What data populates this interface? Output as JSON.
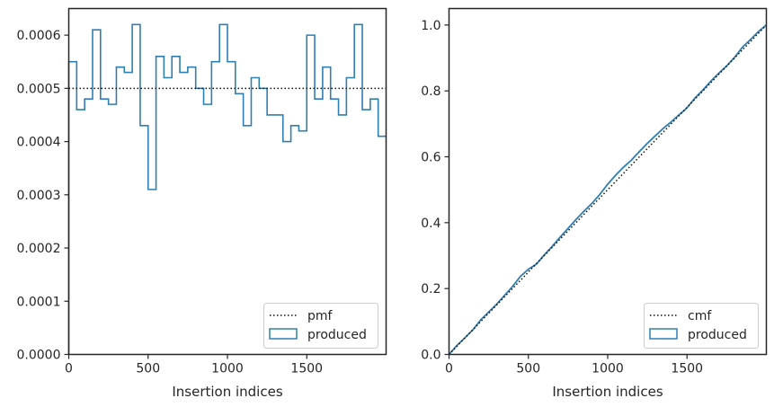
{
  "colors": {
    "produced": "#2f7fb3",
    "reference": "#111111",
    "axes": "#262626"
  },
  "chart_data": [
    {
      "type": "histogram-step",
      "xlabel": "Insertion indices",
      "ylabel": "",
      "xlim": [
        0,
        2000
      ],
      "ylim": [
        0,
        0.00065
      ],
      "xticks": [
        0,
        500,
        1000,
        1500
      ],
      "xtick_labels": [
        "0",
        "500",
        "1000",
        "1500"
      ],
      "yticks": [
        0,
        0.0001,
        0.0002,
        0.0003,
        0.0004,
        0.0005,
        0.0006
      ],
      "ytick_labels": [
        "0.0000",
        "0.0001",
        "0.0002",
        "0.0003",
        "0.0004",
        "0.0005",
        "0.0006"
      ],
      "legend": {
        "placement": "lower-right",
        "entries": [
          "pmf",
          "produced"
        ]
      },
      "reference": {
        "name": "pmf",
        "style": "dotted",
        "value": 0.0005
      },
      "produced": {
        "name": "produced",
        "bin_width": 50,
        "bin_edges_start": 0,
        "values": [
          0.00055,
          0.00046,
          0.00048,
          0.00061,
          0.00048,
          0.00047,
          0.00054,
          0.00053,
          0.00062,
          0.00043,
          0.00031,
          0.00056,
          0.00052,
          0.00056,
          0.00053,
          0.00054,
          0.0005,
          0.00047,
          0.00055,
          0.00062,
          0.00055,
          0.00049,
          0.00043,
          0.00052,
          0.0005,
          0.00045,
          0.00045,
          0.0004,
          0.00043,
          0.00042,
          0.0006,
          0.00048,
          0.00054,
          0.00048,
          0.00045,
          0.00052,
          0.00062,
          0.00046,
          0.00048,
          0.00041
        ]
      }
    },
    {
      "type": "line",
      "xlabel": "Insertion indices",
      "ylabel": "",
      "xlim": [
        0,
        2000
      ],
      "ylim": [
        0,
        1.05
      ],
      "xticks": [
        0,
        500,
        1000,
        1500
      ],
      "xtick_labels": [
        "0",
        "500",
        "1000",
        "1500"
      ],
      "yticks": [
        0,
        0.2,
        0.4,
        0.6,
        0.8,
        1.0
      ],
      "ytick_labels": [
        "0.0",
        "0.2",
        "0.4",
        "0.6",
        "0.8",
        "1.0"
      ],
      "legend": {
        "placement": "lower-right",
        "entries": [
          "cmf",
          "produced"
        ]
      },
      "reference": {
        "name": "cmf",
        "style": "dotted",
        "x": [
          0,
          2000
        ],
        "y": [
          0,
          1.0
        ]
      },
      "produced": {
        "name": "produced",
        "x": [
          0,
          50,
          100,
          150,
          200,
          250,
          300,
          350,
          400,
          450,
          500,
          550,
          600,
          650,
          700,
          750,
          800,
          850,
          900,
          950,
          1000,
          1050,
          1100,
          1150,
          1200,
          1250,
          1300,
          1350,
          1400,
          1450,
          1500,
          1550,
          1600,
          1650,
          1700,
          1750,
          1800,
          1850,
          1900,
          1950,
          2000
        ],
        "y": [
          0,
          0.0275,
          0.0505,
          0.0745,
          0.105,
          0.129,
          0.1525,
          0.1795,
          0.206,
          0.237,
          0.2585,
          0.274,
          0.302,
          0.328,
          0.356,
          0.3825,
          0.4095,
          0.4345,
          0.458,
          0.4855,
          0.5165,
          0.544,
          0.5685,
          0.59,
          0.616,
          0.641,
          0.6635,
          0.686,
          0.706,
          0.7275,
          0.7485,
          0.7785,
          0.8025,
          0.8295,
          0.8535,
          0.876,
          0.902,
          0.933,
          0.956,
          0.98,
          1.0
        ]
      }
    }
  ]
}
